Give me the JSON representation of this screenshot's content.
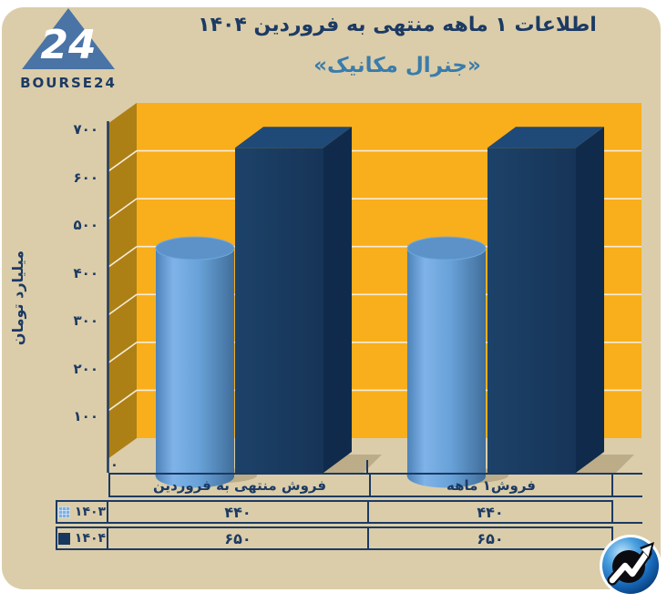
{
  "header": {
    "title": "اطلاعات ۱ ماهه منتهی به فروردین ۱۴۰۴",
    "subtitle": "«جنرال مکانیک»",
    "brand": "BOURSE24",
    "logo_numeral": "24"
  },
  "icons": {
    "brand": "bourse24-triangle-icon",
    "footer": "trend-arrow-icon"
  },
  "chart_data": {
    "type": "bar",
    "style": "3d",
    "title": "اطلاعات ۱ ماهه منتهی به فروردین ۱۴۰۴",
    "subtitle": "«جنرال مکانیک»",
    "ylabel": "میلیارد تومان",
    "ylim": [
      0,
      700
    ],
    "ytick_step": 100,
    "yticks_fa": [
      "۷۰۰",
      "۶۰۰",
      "۵۰۰",
      "۴۰۰",
      "۳۰۰",
      "۲۰۰",
      "۱۰۰",
      "۰"
    ],
    "categories": [
      "فروش منتهی به  فروردین",
      "فروش۱ ماهه"
    ],
    "series": [
      {
        "name": "۱۴۰۳",
        "shape": "cylinder",
        "color": "#6ea5dc",
        "values": [
          440,
          440
        ],
        "values_fa": [
          "۴۴۰",
          "۴۴۰"
        ]
      },
      {
        "name": "۱۴۰۴",
        "shape": "box",
        "color": "#17375e",
        "values": [
          650,
          650
        ],
        "values_fa": [
          "۶۵۰",
          "۶۵۰"
        ]
      }
    ],
    "grid": true,
    "legend_position": "table-left",
    "colors": {
      "back_wall": "#f9ae1c",
      "side_wall": "#ad8016",
      "grid": "#f5edd8",
      "axis": "#1c3a63",
      "shadow": "rgba(115,96,60,0.30)",
      "cyl": {
        "body_l": "#4d82b8",
        "body_hl": "#7fb3e8",
        "body_m": "#68a2d8",
        "body_r": "#416e9b",
        "top": "#5c92c8",
        "top_rim": "#6ea9de"
      },
      "box": {
        "front1": "#1d4269",
        "front2": "#163457",
        "top": "#1f4a77",
        "side": "#0f2a4a"
      }
    }
  }
}
